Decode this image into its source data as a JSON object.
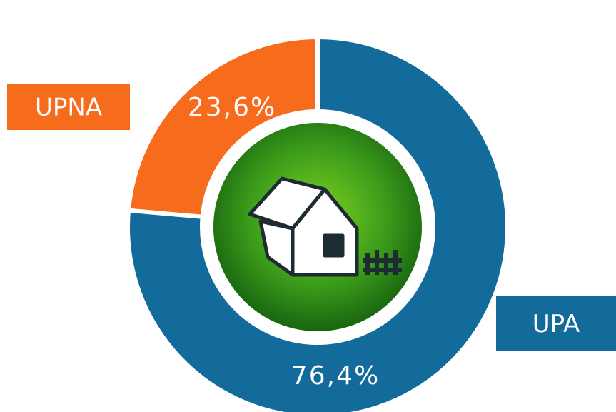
{
  "chart_data": {
    "type": "pie",
    "donut": true,
    "categories": [
      "UPA",
      "UPNA"
    ],
    "values": [
      76.4,
      23.6
    ],
    "value_labels": [
      "76,4%",
      "23,6%"
    ],
    "colors": [
      "#136b9c",
      "#f76b1c"
    ]
  }
}
